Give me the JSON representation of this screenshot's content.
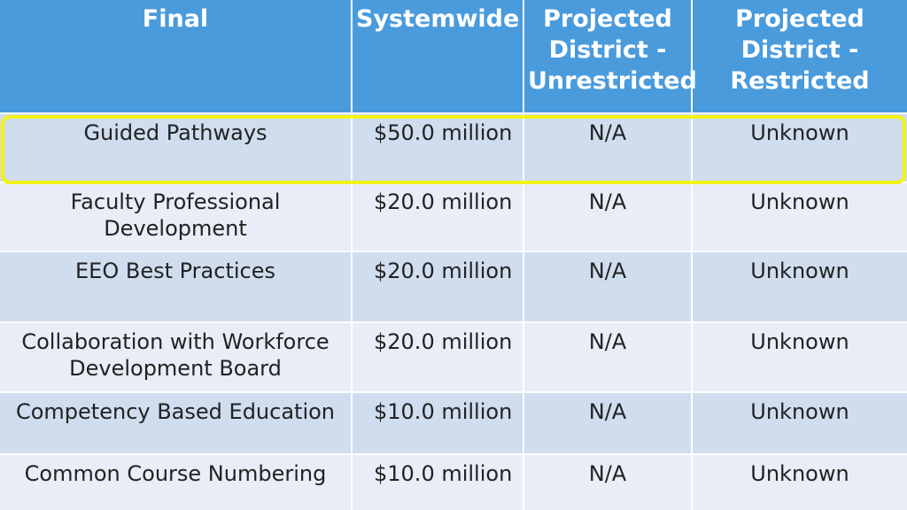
{
  "table": {
    "headers": [
      "Final",
      "Systemwide",
      "Projected District - Unrestricted",
      "Projected District - Restricted"
    ],
    "rows": [
      {
        "program": "Guided Pathways",
        "systemwide": "$50.0 million",
        "unrestricted": "N/A",
        "restricted": "Unknown"
      },
      {
        "program": "Faculty Professional Development",
        "systemwide": "$20.0 million",
        "unrestricted": "N/A",
        "restricted": "Unknown"
      },
      {
        "program": "EEO Best Practices",
        "systemwide": "$20.0 million",
        "unrestricted": "N/A",
        "restricted": "Unknown"
      },
      {
        "program": "Collaboration with Workforce Development Board",
        "systemwide": "$20.0 million",
        "unrestricted": "N/A",
        "restricted": "Unknown"
      },
      {
        "program": "Competency Based Education",
        "systemwide": "$10.0 million",
        "unrestricted": "N/A",
        "restricted": "Unknown"
      },
      {
        "program": "Common Course Numbering",
        "systemwide": "$10.0 million",
        "unrestricted": "N/A",
        "restricted": "Unknown"
      }
    ]
  },
  "colors": {
    "header_bg": "#4a9bdc",
    "row_dark": "#cfddef",
    "row_light": "#e8edf7",
    "highlight_border": "#f2f21a"
  }
}
